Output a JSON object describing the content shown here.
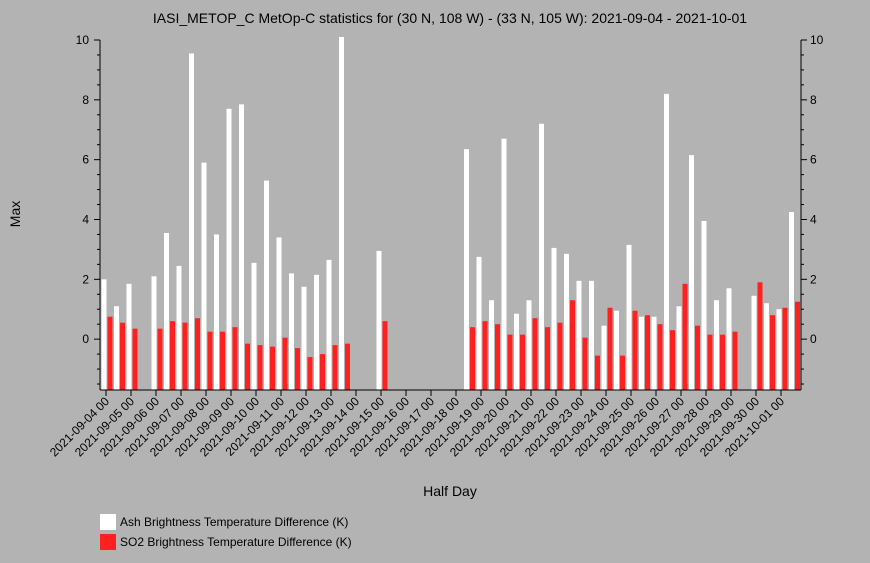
{
  "chart_data": {
    "type": "bar",
    "title": "IASI_METOP_C MetOp-C statistics for (30 N, 108 W) - (33 N, 105 W): 2021-09-04 - 2021-10-01",
    "xlabel": "Half Day",
    "ylabel": "Max",
    "ylim": [
      -1.7,
      10
    ],
    "yticks": [
      0,
      2,
      4,
      6,
      8,
      10
    ],
    "x_tick_labels": [
      "2021-09-04 00",
      "2021-09-05 00",
      "2021-09-06 00",
      "2021-09-07 00",
      "2021-09-08 00",
      "2021-09-09 00",
      "2021-09-10 00",
      "2021-09-11 00",
      "2021-09-12 00",
      "2021-09-13 00",
      "2021-09-14 00",
      "2021-09-15 00",
      "2021-09-16 00",
      "2021-09-17 00",
      "2021-09-18 00",
      "2021-09-19 00",
      "2021-09-20 00",
      "2021-09-21 00",
      "2021-09-22 00",
      "2021-09-23 00",
      "2021-09-24 00",
      "2021-09-25 00",
      "2021-09-26 00",
      "2021-09-27 00",
      "2021-09-28 00",
      "2021-09-29 00",
      "2021-09-30 00",
      "2021-10-01 00"
    ],
    "series": [
      {
        "name": "Ash Brightness Temperature Difference (K)",
        "color": "#ffffff",
        "values": [
          2.0,
          1.1,
          1.85,
          null,
          2.1,
          3.55,
          2.45,
          9.55,
          5.9,
          3.5,
          7.7,
          7.85,
          2.55,
          5.3,
          3.4,
          2.2,
          1.75,
          2.15,
          2.65,
          10.1,
          null,
          null,
          2.95,
          null,
          null,
          null,
          null,
          null,
          null,
          6.35,
          2.75,
          1.3,
          6.7,
          0.85,
          1.3,
          7.2,
          3.05,
          2.85,
          1.95,
          1.95,
          0.45,
          0.95,
          3.15,
          0.75,
          0.75,
          8.2,
          1.1,
          6.15,
          3.95,
          1.3,
          1.7,
          null,
          1.45,
          1.2,
          1.0,
          4.25
        ]
      },
      {
        "name": "SO2 Brightness Temperature Difference (K)",
        "color": "#ff2020",
        "values": [
          0.75,
          0.55,
          0.35,
          null,
          0.35,
          0.6,
          0.55,
          0.7,
          0.25,
          0.25,
          0.4,
          -0.15,
          -0.2,
          -0.25,
          0.05,
          -0.3,
          -0.6,
          -0.5,
          -0.2,
          -0.15,
          null,
          null,
          0.6,
          null,
          null,
          null,
          null,
          null,
          null,
          0.4,
          0.6,
          0.5,
          0.15,
          0.15,
          0.7,
          0.4,
          0.55,
          1.3,
          0.05,
          -0.55,
          1.05,
          -0.55,
          0.95,
          0.8,
          0.5,
          0.3,
          1.85,
          0.45,
          0.15,
          0.15,
          0.25,
          null,
          1.9,
          0.8,
          1.05,
          1.25
        ]
      }
    ],
    "legend": {
      "placement": "bottom-left",
      "entries": [
        "Ash Brightness Temperature Difference (K)",
        "SO2 Brightness Temperature Difference (K)"
      ]
    },
    "grid": false
  }
}
